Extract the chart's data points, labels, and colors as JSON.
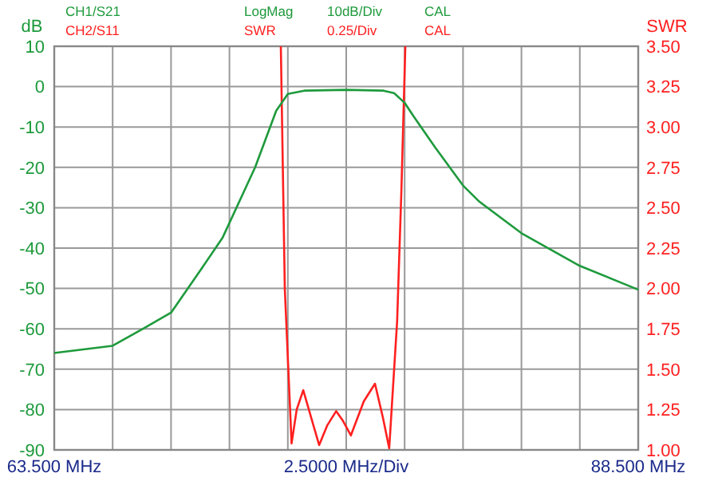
{
  "chart_data": {
    "type": "line",
    "xlabel": "2.5000 MHz/Div",
    "ylabel": "dB",
    "y2label": "SWR",
    "annotations": [
      "LogMag",
      "10dB/Div",
      "CAL",
      "SWR",
      "0.25/Div",
      "CAL"
    ],
    "xlim": [
      63.5,
      88.5
    ],
    "xticks": [
      {
        "value": 63.5,
        "label": "63.500 MHz"
      },
      {
        "value": 66,
        "label": null
      },
      {
        "value": 68.5,
        "label": null
      },
      {
        "value": 71,
        "label": null
      },
      {
        "value": 73.5,
        "label": null
      },
      {
        "value": 76,
        "label": null
      },
      {
        "value": 78.5,
        "label": null
      },
      {
        "value": 81,
        "label": null
      },
      {
        "value": 83.5,
        "label": null
      },
      {
        "value": 86,
        "label": null
      },
      {
        "value": 88.5,
        "label": "88.500 MHz"
      }
    ],
    "ylim": [
      -90,
      10
    ],
    "yticks": [
      10,
      0,
      -10,
      -20,
      -30,
      -40,
      -50,
      -60,
      -70,
      -80,
      -90
    ],
    "y2lim": [
      1,
      3.5
    ],
    "y2ticks": [
      {
        "value": 1,
        "label": "1.00"
      },
      {
        "value": 1.25,
        "label": "1.25"
      },
      {
        "value": 1.5,
        "label": "1.50"
      },
      {
        "value": 1.75,
        "label": "1.75"
      },
      {
        "value": 2,
        "label": "2.00"
      },
      {
        "value": 2.25,
        "label": "2.25"
      },
      {
        "value": 2.5,
        "label": "2.50"
      },
      {
        "value": 2.75,
        "label": "2.75"
      },
      {
        "value": 3,
        "label": "3.00"
      },
      {
        "value": 3.25,
        "label": "3.25"
      },
      {
        "value": 3.5,
        "label": "3.50"
      }
    ],
    "grid": true,
    "legend": "top left",
    "series": [
      {
        "name": "CH1/S21",
        "color": "#1e9a3c",
        "x": [
          63.5,
          66.0,
          67.3,
          68.5,
          69.7,
          70.7,
          72.1,
          73.0,
          73.5,
          74.2,
          76.0,
          77.6,
          78.05,
          78.5,
          78.9,
          79.8,
          81.0,
          81.7,
          83.5,
          86.0,
          88.5
        ],
        "values": [
          -66,
          -64.2,
          -60,
          -56,
          -46,
          -37.5,
          -20,
          -6,
          -1.8,
          -1,
          -0.8,
          -1,
          -1.6,
          -4,
          -7.5,
          -15,
          -24.5,
          -28.5,
          -36.3,
          -44.4,
          -50.3
        ]
      },
      {
        "name": "CH2/S11",
        "color": "#ff2020",
        "axis": "y2",
        "x": [
          73.2,
          73.37,
          73.66,
          73.88,
          74.16,
          74.5,
          74.84,
          75.18,
          75.57,
          75.86,
          76.2,
          76.75,
          77.23,
          77.57,
          77.84,
          78.18,
          78.36,
          78.53
        ],
        "values": [
          3.5,
          2.0,
          1.04,
          1.25,
          1.37,
          1.2,
          1.03,
          1.15,
          1.24,
          1.18,
          1.09,
          1.3,
          1.41,
          1.2,
          1.01,
          1.8,
          2.6,
          3.5
        ]
      }
    ]
  }
}
